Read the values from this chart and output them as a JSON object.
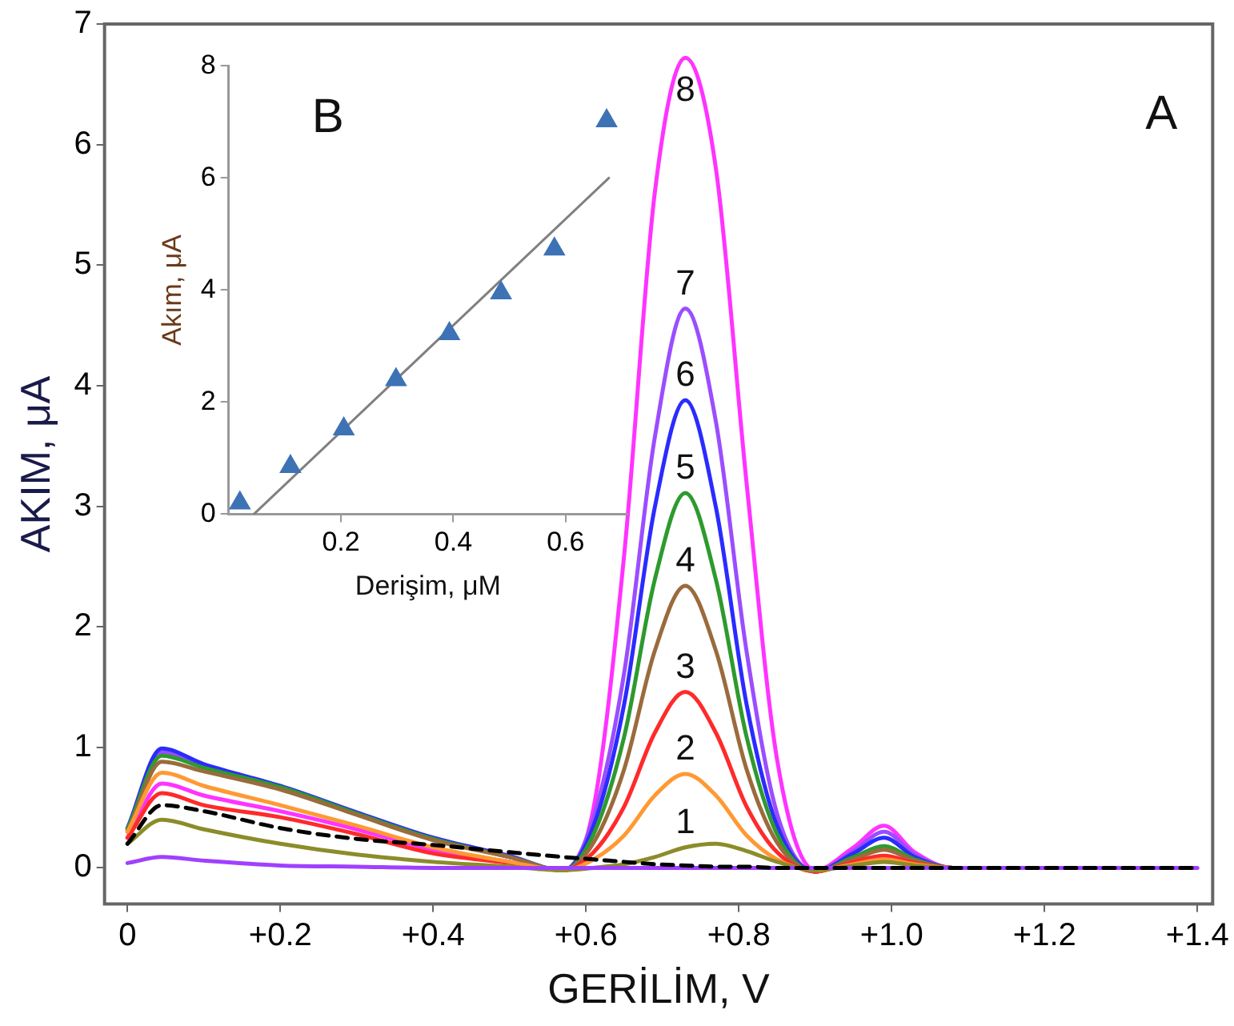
{
  "chart_data": [
    {
      "type": "line",
      "annotations": [
        "A"
      ],
      "xlabel": "GERİLİM, V",
      "ylabel": "AKIM, μA",
      "x": [
        0,
        0.045,
        0.1,
        0.2,
        0.3,
        0.4,
        0.5,
        0.57,
        0.61,
        0.65,
        0.69,
        0.73,
        0.77,
        0.81,
        0.85,
        0.9,
        0.95,
        0.99,
        1.03,
        1.08,
        1.2,
        1.3,
        1.4
      ],
      "xlim": [
        -0.03,
        1.42
      ],
      "ylim": [
        -0.3,
        7
      ],
      "xticks": [
        0,
        {
          "value": 0.2,
          "label": "+0.2"
        },
        {
          "value": 0.4,
          "label": "+0.4"
        },
        {
          "value": 0.6,
          "label": "+0.6"
        },
        {
          "value": 0.8,
          "label": "+0.8"
        },
        {
          "value": 1.0,
          "label": "+1.0"
        },
        {
          "value": 1.2,
          "label": "+1.2"
        },
        {
          "value": 1.4,
          "label": "+1.4"
        }
      ],
      "yticks": [
        0,
        1,
        2,
        3,
        4,
        5,
        6,
        7
      ],
      "grid": false,
      "legend": false,
      "marker": "none",
      "series": [
        {
          "color": "#000000",
          "line_style": "dashed",
          "values": [
            0.2,
            0.52,
            0.47,
            0.33,
            0.24,
            0.19,
            0.13,
            0.09,
            0.07,
            0.05,
            0.03,
            0.02,
            0.01,
            0.01,
            0,
            0,
            0,
            0,
            0,
            0,
            0,
            0,
            0
          ]
        },
        {
          "color": "#a040ff",
          "values": [
            0.04,
            0.09,
            0.06,
            0.02,
            0.01,
            0,
            0,
            0,
            0,
            0,
            0,
            0,
            0,
            0,
            0,
            0,
            0,
            0,
            0,
            0,
            0,
            0,
            0
          ]
        },
        {
          "name": "1",
          "color": "#8c8c2a",
          "values": [
            0.2,
            0.4,
            0.32,
            0.2,
            0.11,
            0.05,
            0.01,
            -0.02,
            0,
            0.03,
            0.09,
            0.17,
            0.2,
            0.14,
            0.05,
            -0.02,
            0.02,
            0.05,
            0.02,
            0,
            0,
            null,
            null
          ]
        },
        {
          "name": "2",
          "color": "#ff9933",
          "values": [
            0.3,
            0.79,
            0.68,
            0.52,
            0.35,
            0.17,
            0.05,
            -0.02,
            0.07,
            0.27,
            0.6,
            0.78,
            0.6,
            0.27,
            0.07,
            -0.02,
            0.03,
            0.07,
            0.03,
            0,
            0,
            null,
            null
          ]
        },
        {
          "name": "3",
          "color": "#ff2a2a",
          "values": [
            0.25,
            0.62,
            0.52,
            0.42,
            0.28,
            0.12,
            0.04,
            -0.02,
            0.13,
            0.51,
            1.12,
            1.46,
            1.12,
            0.51,
            0.13,
            -0.03,
            0.05,
            0.1,
            0.04,
            0,
            0,
            null,
            null
          ]
        },
        {
          "name": "4",
          "color": "#9a6b3c",
          "values": [
            0.3,
            0.88,
            0.8,
            0.65,
            0.44,
            0.23,
            0.09,
            -0.02,
            0.21,
            0.82,
            1.8,
            2.34,
            1.8,
            0.82,
            0.21,
            -0.03,
            0.07,
            0.15,
            0.06,
            0,
            0,
            null,
            null
          ]
        },
        {
          "name": "5",
          "color": "#2e9a2e",
          "values": [
            0.32,
            0.93,
            0.83,
            0.67,
            0.45,
            0.24,
            0.09,
            -0.02,
            0.28,
            1.09,
            2.39,
            3.11,
            2.39,
            1.09,
            0.28,
            -0.03,
            0.09,
            0.18,
            0.07,
            0,
            0,
            null,
            null
          ]
        },
        {
          "name": "6",
          "color": "#2b2bff",
          "values": [
            0.33,
            0.99,
            0.86,
            0.68,
            0.46,
            0.25,
            0.1,
            -0.02,
            0.35,
            1.36,
            2.99,
            3.88,
            2.99,
            1.36,
            0.35,
            -0.03,
            0.12,
            0.25,
            0.09,
            0,
            0,
            null,
            null
          ]
        },
        {
          "name": "7",
          "color": "#9b4dff",
          "values": [
            0.32,
            0.96,
            0.84,
            0.67,
            0.45,
            0.24,
            0.09,
            -0.02,
            0.42,
            1.62,
            3.57,
            4.64,
            3.7,
            1.8,
            0.45,
            -0.03,
            0.14,
            0.3,
            0.11,
            0,
            0,
            null,
            null
          ]
        },
        {
          "name": "8",
          "color": "#ff33ff",
          "values": [
            0.25,
            0.7,
            0.6,
            0.47,
            0.32,
            0.15,
            0.05,
            -0.02,
            0.5,
            2.6,
            5.6,
            6.72,
            5.8,
            3.2,
            0.9,
            -0.02,
            0.17,
            0.35,
            0.13,
            0,
            0,
            null,
            null
          ]
        }
      ]
    },
    {
      "type": "scatter",
      "annotations": [
        "B"
      ],
      "xlabel": "Derişim, μM",
      "ylabel": "Akım, μA",
      "xlim": [
        0,
        0.71
      ],
      "ylim": [
        0,
        8
      ],
      "xticks": [
        0.2,
        0.4,
        0.6
      ],
      "yticks": [
        0,
        2,
        4,
        6,
        8
      ],
      "grid": false,
      "legend": false,
      "series": [
        {
          "type": "scatter",
          "marker": "triangle",
          "color": "#3d72b4",
          "x": [
            0.02,
            0.11,
            0.205,
            0.298,
            0.393,
            0.485,
            0.58,
            0.673
          ],
          "values": [
            0.2,
            0.85,
            1.52,
            2.4,
            3.22,
            3.95,
            4.73,
            7.02
          ]
        },
        {
          "type": "line",
          "marker": "none",
          "color": "#808080",
          "x": [
            0.045,
            0.677
          ],
          "values": [
            0,
            6.0
          ]
        }
      ]
    }
  ]
}
